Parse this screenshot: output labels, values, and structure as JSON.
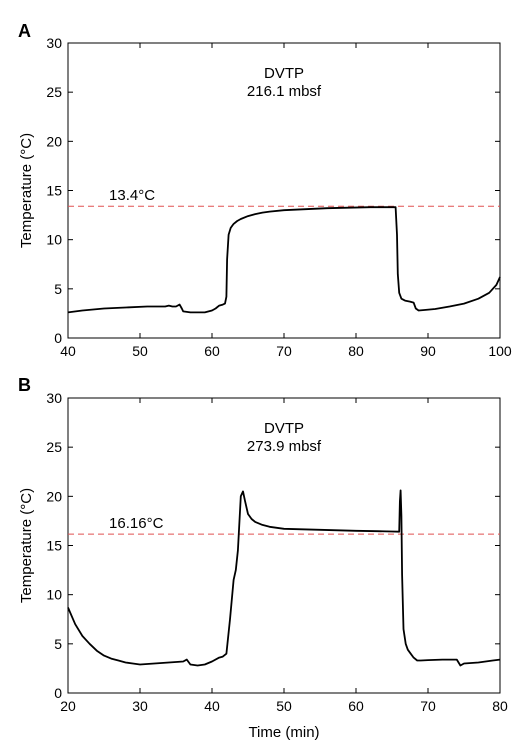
{
  "chart_data": [
    {
      "panel_label": "A",
      "type": "line",
      "title": "DVTP",
      "subtitle": "216.1 mbsf",
      "xlabel": "",
      "ylabel": "Temperature (°C)",
      "xlim": [
        40,
        100
      ],
      "ylim": [
        0,
        30
      ],
      "xticks": [
        40,
        50,
        60,
        70,
        80,
        90,
        100
      ],
      "yticks": [
        0,
        5,
        10,
        15,
        20,
        25,
        30
      ],
      "grid": false,
      "reference_line": {
        "value": 13.4,
        "label": "13.4°C",
        "color": "#e05050",
        "style": "dashed"
      },
      "series": [
        {
          "color": "#000000",
          "x": [
            40,
            42,
            45,
            48,
            51,
            53.5,
            54,
            54.5,
            55,
            55.5,
            55.8,
            56,
            57,
            59,
            60,
            60.5,
            61,
            61.5,
            61.8,
            62,
            62.1,
            62.3,
            62.6,
            63,
            63.5,
            64,
            65,
            66,
            67,
            68,
            70,
            73,
            76,
            79,
            82,
            84,
            85.5,
            85.7,
            85.8,
            86,
            86.3,
            86.8,
            87.5,
            88,
            88.3,
            88.7,
            89.5,
            91,
            93,
            95,
            97,
            98.5,
            99.5,
            100
          ],
          "y": [
            2.6,
            2.8,
            3.0,
            3.1,
            3.2,
            3.2,
            3.3,
            3.2,
            3.2,
            3.4,
            3.0,
            2.7,
            2.6,
            2.6,
            2.8,
            3.0,
            3.3,
            3.4,
            3.5,
            4.2,
            8.0,
            10.5,
            11.2,
            11.6,
            11.9,
            12.1,
            12.4,
            12.6,
            12.75,
            12.85,
            13.0,
            13.1,
            13.2,
            13.25,
            13.3,
            13.3,
            13.3,
            10.5,
            6.5,
            4.6,
            4.0,
            3.8,
            3.7,
            3.6,
            3.0,
            2.8,
            2.85,
            2.95,
            3.2,
            3.5,
            4.0,
            4.6,
            5.4,
            6.2
          ]
        }
      ]
    },
    {
      "panel_label": "B",
      "type": "line",
      "title": "DVTP",
      "subtitle": "273.9 mbsf",
      "xlabel": "Time (min)",
      "ylabel": "Temperature (°C)",
      "xlim": [
        20,
        80
      ],
      "ylim": [
        0,
        30
      ],
      "xticks": [
        20,
        30,
        40,
        50,
        60,
        70,
        80
      ],
      "yticks": [
        0,
        5,
        10,
        15,
        20,
        25,
        30
      ],
      "grid": false,
      "reference_line": {
        "value": 16.16,
        "label": "16.16°C",
        "color": "#e05050",
        "style": "dashed"
      },
      "series": [
        {
          "color": "#000000",
          "x": [
            20,
            21,
            22,
            23,
            24,
            25,
            26,
            27,
            28,
            29,
            30,
            31,
            32,
            34,
            36,
            36.5,
            37,
            38,
            39,
            40,
            41,
            41.5,
            42,
            42.5,
            43,
            43.3,
            43.6,
            44,
            44.3,
            44.6,
            45,
            45.5,
            46,
            47,
            48,
            50,
            55,
            60,
            63,
            65,
            66,
            66.1,
            66.2,
            66.3,
            66.4,
            66.6,
            66.9,
            67.2,
            67.6,
            68,
            68.5,
            69,
            70,
            72,
            74,
            74.5,
            75,
            77,
            79,
            80
          ],
          "y": [
            8.7,
            7.0,
            5.8,
            5.0,
            4.3,
            3.8,
            3.5,
            3.3,
            3.1,
            3.0,
            2.9,
            2.95,
            3.0,
            3.1,
            3.2,
            3.4,
            2.9,
            2.8,
            2.9,
            3.2,
            3.6,
            3.7,
            4.0,
            7.5,
            11.5,
            12.5,
            14.5,
            20.0,
            20.5,
            19.5,
            18.2,
            17.7,
            17.4,
            17.1,
            16.9,
            16.7,
            16.6,
            16.5,
            16.45,
            16.42,
            16.4,
            19.5,
            20.6,
            18.0,
            12.0,
            6.5,
            5.0,
            4.4,
            4.0,
            3.6,
            3.3,
            3.3,
            3.35,
            3.4,
            3.4,
            2.8,
            3.0,
            3.1,
            3.3,
            3.4
          ]
        }
      ]
    }
  ]
}
